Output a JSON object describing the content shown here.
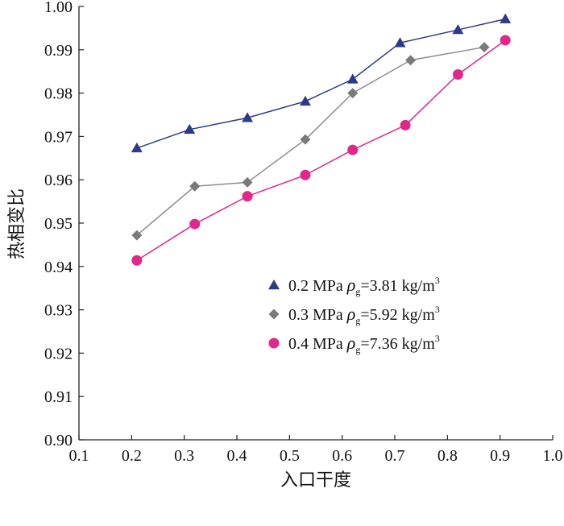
{
  "chart_data": {
    "type": "line",
    "xlabel": "入口干度",
    "ylabel": "热相变比",
    "xlim": [
      0.1,
      1.0
    ],
    "ylim": [
      0.9,
      1.0
    ],
    "xticks": [
      "0.1",
      "0.2",
      "0.3",
      "0.4",
      "0.5",
      "0.6",
      "0.7",
      "0.8",
      "0.9",
      "1.0"
    ],
    "yticks": [
      "0.90",
      "0.91",
      "0.92",
      "0.93",
      "0.94",
      "0.95",
      "0.96",
      "0.97",
      "0.98",
      "0.99",
      "1.00"
    ],
    "grid": false,
    "legend_position": "lower-right (inside plot)",
    "series": [
      {
        "name": "0.2 MPa ρg=3.81 kg/m3",
        "label": {
          "pressure": "0.2 MPa",
          "rho": "ρ",
          "sub": "g",
          "value": "=3.81 kg/m",
          "sup": "3"
        },
        "marker": "triangle",
        "color": "#2e3a87",
        "marker_color": "#2e3a87",
        "points": [
          [
            0.21,
            0.9673
          ],
          [
            0.31,
            0.9716
          ],
          [
            0.42,
            0.9743
          ],
          [
            0.53,
            0.9781
          ],
          [
            0.62,
            0.9832
          ],
          [
            0.71,
            0.9916
          ],
          [
            0.82,
            0.9946
          ],
          [
            0.91,
            0.9971
          ]
        ]
      },
      {
        "name": "0.3 MPa ρg=5.92 kg/m3",
        "label": {
          "pressure": "0.3 MPa",
          "rho": "ρ",
          "sub": "g",
          "value": "=5.92 kg/m",
          "sup": "3"
        },
        "marker": "diamond",
        "color": "#8c8c8c",
        "marker_color": "#7a7a7a",
        "points": [
          [
            0.21,
            0.9472
          ],
          [
            0.32,
            0.9585
          ],
          [
            0.42,
            0.9594
          ],
          [
            0.53,
            0.9693
          ],
          [
            0.62,
            0.98
          ],
          [
            0.73,
            0.9876
          ],
          [
            0.87,
            0.9906
          ]
        ]
      },
      {
        "name": "0.4 MPa ρg=7.36 kg/m3",
        "label": {
          "pressure": "0.4 MPa",
          "rho": "ρ",
          "sub": "g",
          "value": "=7.36 kg/m",
          "sup": "3"
        },
        "marker": "circle",
        "color": "#e0278a",
        "marker_color": "#e0278a",
        "points": [
          [
            0.21,
            0.9414
          ],
          [
            0.32,
            0.9498
          ],
          [
            0.42,
            0.9562
          ],
          [
            0.53,
            0.9611
          ],
          [
            0.62,
            0.9669
          ],
          [
            0.72,
            0.9726
          ],
          [
            0.82,
            0.9843
          ],
          [
            0.91,
            0.9922
          ]
        ]
      }
    ]
  }
}
